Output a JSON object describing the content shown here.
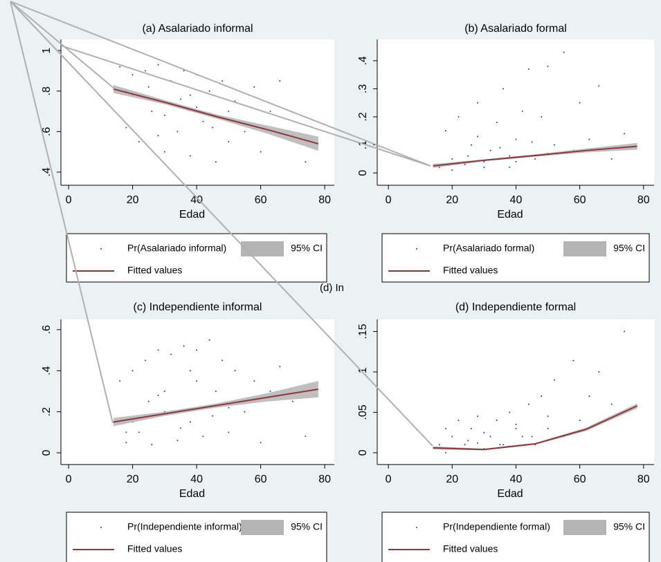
{
  "fragment": "(d) In",
  "chart_data": [
    {
      "type": "scatter",
      "title": "(a) Asalariado informal",
      "xlabel": "Edad",
      "xlim": [
        -2.4,
        83
      ],
      "ylim": [
        0.335,
        1.055
      ],
      "xticks": [
        0,
        20,
        40,
        60,
        80
      ],
      "yticks": [
        {
          "value": 0.4,
          "label": ".4"
        },
        {
          "value": 0.6,
          "label": ".6"
        },
        {
          "value": 0.8,
          "label": ".8"
        },
        1
      ],
      "series": [
        {
          "name": "Pr(Asalariado informal)",
          "color": "#1a476f",
          "x": [
            16,
            18,
            20,
            22,
            24,
            26,
            28,
            30,
            32,
            34,
            36,
            38,
            40,
            42,
            44,
            46,
            48,
            50,
            52,
            55,
            58,
            60,
            63,
            66,
            70,
            74,
            20,
            25,
            30,
            35,
            40,
            45,
            50,
            18,
            28,
            38
          ],
          "values": [
            0.92,
            0.62,
            0.88,
            0.55,
            0.9,
            0.7,
            0.93,
            0.5,
            0.85,
            0.6,
            0.9,
            0.48,
            0.88,
            0.65,
            0.8,
            0.45,
            0.85,
            0.55,
            0.75,
            0.6,
            0.82,
            0.5,
            0.7,
            0.85,
            0.58,
            0.45,
            0.78,
            0.82,
            0.68,
            0.76,
            0.72,
            0.62,
            0.7,
            0.8,
            0.58,
            0.78
          ]
        },
        {
          "name": "Fitted values",
          "color": "#90353b",
          "x": [
            14,
            30,
            46,
            62,
            78
          ],
          "values": [
            0.81,
            0.745,
            0.675,
            0.61,
            0.54
          ]
        },
        {
          "name": "95% CI",
          "color": "#b4b4b4",
          "x": [
            14,
            30,
            46,
            62,
            78
          ],
          "lower": [
            0.79,
            0.735,
            0.665,
            0.59,
            0.505
          ],
          "upper": [
            0.83,
            0.755,
            0.685,
            0.63,
            0.575
          ]
        }
      ]
    },
    {
      "type": "scatter",
      "title": "(b) Asalariado formal",
      "xlabel": "Edad",
      "xlim": [
        -3.5,
        83.3
      ],
      "ylim": [
        -0.044,
        0.476
      ],
      "xticks": [
        0,
        20,
        40,
        60,
        80
      ],
      "yticks": [
        0,
        {
          "value": 0.1,
          "label": ".1"
        },
        {
          "value": 0.2,
          "label": ".2"
        },
        {
          "value": 0.3,
          "label": ".3"
        },
        {
          "value": 0.4,
          "label": ".4"
        }
      ],
      "series": [
        {
          "name": "Pr(Asalariado formal)",
          "color": "#1a476f",
          "x": [
            16,
            18,
            20,
            22,
            24,
            26,
            28,
            30,
            32,
            34,
            36,
            38,
            40,
            42,
            44,
            46,
            48,
            50,
            52,
            55,
            58,
            60,
            63,
            66,
            70,
            74,
            20,
            25,
            30,
            35,
            40,
            45,
            50,
            18,
            28,
            38
          ],
          "values": [
            0.02,
            0.15,
            0.05,
            0.2,
            0.03,
            0.1,
            0.25,
            0.04,
            0.08,
            0.18,
            0.3,
            0.06,
            0.12,
            0.22,
            0.37,
            0.05,
            0.2,
            0.38,
            0.1,
            0.43,
            0.08,
            0.25,
            0.12,
            0.31,
            0.05,
            0.14,
            0.01,
            0.06,
            0.02,
            0.09,
            0.04,
            0.11,
            0.07,
            0.03,
            0.13,
            0.02
          ]
        },
        {
          "name": "Fitted values",
          "color": "#90353b",
          "x": [
            14,
            30,
            46,
            62,
            78
          ],
          "values": [
            0.025,
            0.045,
            0.062,
            0.08,
            0.095
          ]
        },
        {
          "name": "95% CI",
          "color": "#b4b4b4",
          "x": [
            14,
            30,
            46,
            62,
            78
          ],
          "lower": [
            0.018,
            0.042,
            0.058,
            0.073,
            0.083
          ],
          "upper": [
            0.032,
            0.048,
            0.066,
            0.087,
            0.107
          ]
        }
      ]
    },
    {
      "type": "scatter",
      "title": "(c) Independiente informal",
      "xlabel": "Edad",
      "xlim": [
        -2.4,
        83
      ],
      "ylim": [
        -0.057,
        0.65
      ],
      "xticks": [
        0,
        20,
        40,
        60,
        80
      ],
      "yticks": [
        0,
        {
          "value": 0.2,
          "label": ".2"
        },
        {
          "value": 0.4,
          "label": ".4"
        },
        {
          "value": 0.6,
          "label": ".6"
        }
      ],
      "series": [
        {
          "name": "Pr(Independiente informal)",
          "color": "#1a476f",
          "x": [
            16,
            18,
            20,
            22,
            24,
            26,
            28,
            30,
            32,
            34,
            36,
            38,
            40,
            42,
            44,
            46,
            48,
            50,
            52,
            55,
            58,
            60,
            63,
            66,
            70,
            74,
            20,
            25,
            30,
            35,
            40,
            45,
            50,
            18,
            28,
            38
          ],
          "values": [
            0.35,
            0.05,
            0.4,
            0.1,
            0.45,
            0.04,
            0.5,
            0.2,
            0.48,
            0.06,
            0.52,
            0.15,
            0.5,
            0.08,
            0.55,
            0.3,
            0.45,
            0.1,
            0.4,
            0.2,
            0.35,
            0.05,
            0.3,
            0.42,
            0.25,
            0.08,
            0.15,
            0.25,
            0.3,
            0.12,
            0.35,
            0.18,
            0.22,
            0.1,
            0.28,
            0.4
          ]
        },
        {
          "name": "Fitted values",
          "color": "#90353b",
          "x": [
            14,
            30,
            46,
            62,
            78
          ],
          "values": [
            0.15,
            0.19,
            0.23,
            0.27,
            0.31
          ]
        },
        {
          "name": "95% CI",
          "color": "#b4b4b4",
          "x": [
            14,
            30,
            46,
            62,
            78
          ],
          "lower": [
            0.13,
            0.18,
            0.22,
            0.25,
            0.27
          ],
          "upper": [
            0.17,
            0.2,
            0.24,
            0.29,
            0.35
          ]
        }
      ]
    },
    {
      "type": "scatter",
      "title": "(d) Independiente formal",
      "xlabel": "Edad",
      "xlim": [
        -3.5,
        83.3
      ],
      "ylim": [
        -0.0146,
        0.165
      ],
      "xticks": [
        0,
        20,
        40,
        60,
        80
      ],
      "yticks": [
        0,
        {
          "value": 0.05,
          "label": ".05"
        },
        {
          "value": 0.1,
          "label": ".1"
        },
        {
          "value": 0.15,
          "label": ".15"
        }
      ],
      "series": [
        {
          "name": "Pr(Independiente formal)",
          "color": "#1a476f",
          "x": [
            16,
            18,
            20,
            22,
            24,
            26,
            28,
            30,
            32,
            34,
            36,
            38,
            40,
            42,
            44,
            46,
            48,
            50,
            52,
            55,
            58,
            60,
            63,
            66,
            70,
            74,
            20,
            25,
            30,
            35,
            40,
            45,
            50,
            18,
            28,
            38
          ],
          "values": [
            0.01,
            0.0,
            0.02,
            0.04,
            0.01,
            0.03,
            0.045,
            0.005,
            0.02,
            0.04,
            0.01,
            0.05,
            0.03,
            0.02,
            0.06,
            0.01,
            0.07,
            0.03,
            0.09,
            0.02,
            0.114,
            0.04,
            0.07,
            0.1,
            0.06,
            0.15,
            0.005,
            0.015,
            0.025,
            0.01,
            0.035,
            0.02,
            0.045,
            0.03,
            0.012,
            0.008
          ]
        },
        {
          "name": "Fitted values",
          "color": "#90353b",
          "x": [
            14,
            30,
            46,
            62,
            78
          ],
          "values": [
            0.006,
            0.004,
            0.011,
            0.029,
            0.058
          ]
        },
        {
          "name": "95% CI",
          "color": "#b4b4b4",
          "x": [
            14,
            30,
            46,
            62,
            78
          ],
          "lower": [
            0.004,
            0.003,
            0.01,
            0.027,
            0.055
          ],
          "upper": [
            0.008,
            0.005,
            0.012,
            0.031,
            0.061
          ]
        }
      ]
    }
  ]
}
